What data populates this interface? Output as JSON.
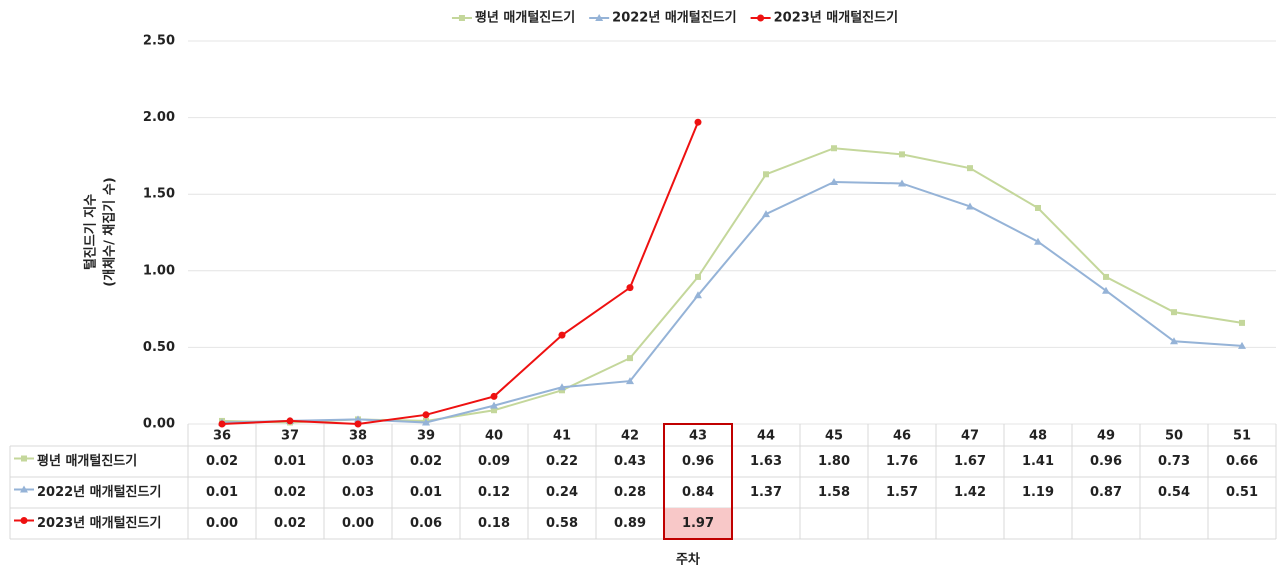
{
  "chart_data": {
    "type": "line",
    "y_axis_label": [
      "털진드기 지수",
      "(개체수/ 채집기 수)"
    ],
    "x_axis_label": "주차",
    "categories": [
      "36",
      "37",
      "38",
      "39",
      "40",
      "41",
      "42",
      "43",
      "44",
      "45",
      "46",
      "47",
      "48",
      "49",
      "50",
      "51"
    ],
    "series": [
      {
        "name": "평년 매개털진드기",
        "color": "#c4d79b",
        "marker": "square",
        "values": [
          0.02,
          0.01,
          0.03,
          0.02,
          0.09,
          0.22,
          0.43,
          0.96,
          1.63,
          1.8,
          1.76,
          1.67,
          1.41,
          0.96,
          0.73,
          0.66
        ],
        "value_labels": [
          "0.02",
          "0.01",
          "0.03",
          "0.02",
          "0.09",
          "0.22",
          "0.43",
          "0.96",
          "1.63",
          "1.80",
          "1.76",
          "1.67",
          "1.41",
          "0.96",
          "0.73",
          "0.66"
        ]
      },
      {
        "name": "2022년 매개털진드기",
        "color": "#95b3d7",
        "marker": "triangle",
        "values": [
          0.01,
          0.02,
          0.03,
          0.01,
          0.12,
          0.24,
          0.28,
          0.84,
          1.37,
          1.58,
          1.57,
          1.42,
          1.19,
          0.87,
          0.54,
          0.51
        ],
        "value_labels": [
          "0.01",
          "0.02",
          "0.03",
          "0.01",
          "0.12",
          "0.24",
          "0.28",
          "0.84",
          "1.37",
          "1.58",
          "1.57",
          "1.42",
          "1.19",
          "0.87",
          "0.54",
          "0.51"
        ]
      },
      {
        "name": "2023년 매개털진드기",
        "color": "#ee1111",
        "marker": "circle",
        "values": [
          0.0,
          0.02,
          0.0,
          0.06,
          0.18,
          0.58,
          0.89,
          1.97,
          null,
          null,
          null,
          null,
          null,
          null,
          null,
          null
        ],
        "value_labels": [
          "0.00",
          "0.02",
          "0.00",
          "0.06",
          "0.18",
          "0.58",
          "0.89",
          "1.97",
          null,
          null,
          null,
          null,
          null,
          null,
          null,
          null
        ]
      }
    ],
    "ylim": [
      0,
      2.5
    ],
    "yticks": [
      {
        "value": 0,
        "label": "0.00"
      },
      {
        "value": 0.5,
        "label": "0.50"
      },
      {
        "value": 1,
        "label": "1.00"
      },
      {
        "value": 1.5,
        "label": "1.50"
      },
      {
        "value": 2,
        "label": "2.00"
      },
      {
        "value": 2.5,
        "label": "2.50"
      }
    ],
    "grid": true,
    "legend": "top",
    "highlight": "43"
  }
}
